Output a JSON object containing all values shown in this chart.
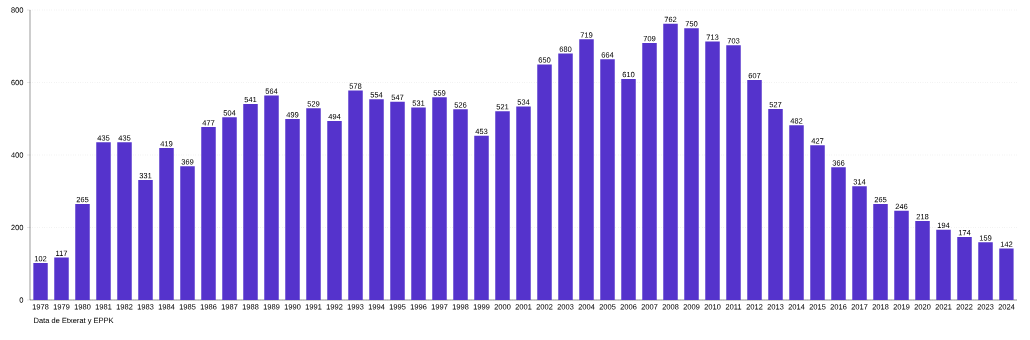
{
  "chart_data": {
    "type": "bar",
    "categories": [
      "1978",
      "1979",
      "1980",
      "1981",
      "1982",
      "1983",
      "1984",
      "1985",
      "1986",
      "1987",
      "1988",
      "1989",
      "1990",
      "1991",
      "1992",
      "1993",
      "1994",
      "1995",
      "1996",
      "1997",
      "1998",
      "1999",
      "2000",
      "2001",
      "2002",
      "2003",
      "2004",
      "2005",
      "2006",
      "2007",
      "2008",
      "2009",
      "2010",
      "2011",
      "2012",
      "2013",
      "2014",
      "2015",
      "2016",
      "2017",
      "2018",
      "2019",
      "2020",
      "2021",
      "2022",
      "2023",
      "2024"
    ],
    "values": [
      102,
      117,
      265,
      435,
      435,
      331,
      419,
      369,
      477,
      504,
      541,
      564,
      499,
      529,
      494,
      578,
      554,
      547,
      531,
      559,
      526,
      453,
      521,
      534,
      650,
      680,
      719,
      664,
      610,
      709,
      762,
      750,
      713,
      703,
      607,
      527,
      482,
      427,
      366,
      314,
      265,
      246,
      218,
      194,
      174,
      159,
      142
    ],
    "color": "#5533cc",
    "ylim": [
      0,
      800
    ],
    "yticks": [
      0,
      200,
      400,
      600,
      800
    ],
    "grid": "y",
    "data_labels": true,
    "annotations": [
      "Data de Etxerat y EPPK"
    ]
  }
}
